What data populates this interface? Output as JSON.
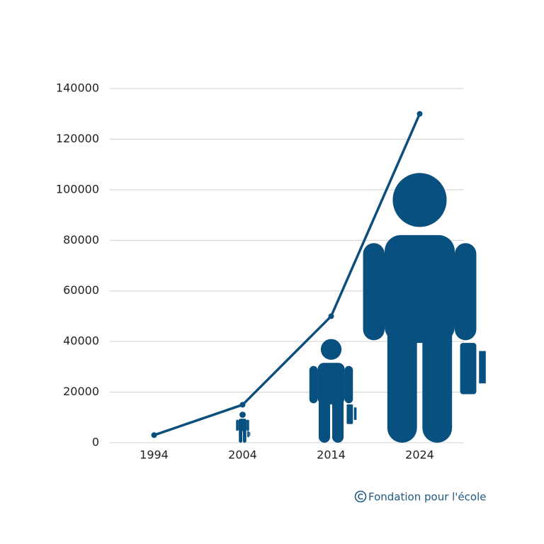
{
  "chart_data": {
    "type": "line",
    "categories": [
      "1994",
      "2004",
      "2014",
      "2024"
    ],
    "series": [
      {
        "color": "#0b4f7c",
        "values": [
          3000,
          15000,
          50000,
          130000
        ]
      }
    ],
    "ylim": [
      0,
      140000
    ],
    "yticks": [
      0,
      20000,
      40000,
      60000,
      80000,
      100000,
      120000,
      140000
    ],
    "grid": true,
    "pictogram_color": "#08507f"
  },
  "credit": "Fondation pour l'école"
}
